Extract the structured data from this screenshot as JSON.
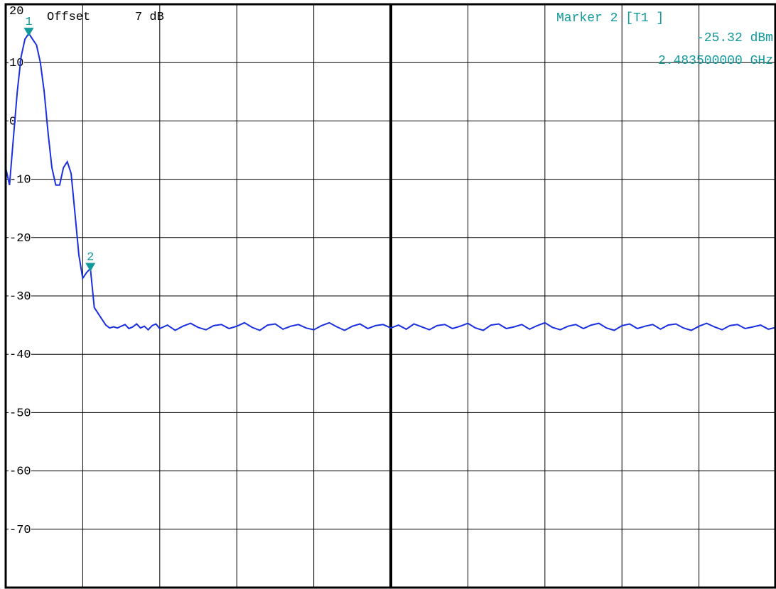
{
  "header": {
    "offset_label": "Offset",
    "offset_value": "7 dB"
  },
  "marker_readout": {
    "title": "Marker 2 [T1 ]",
    "level": "-25.32 dBm",
    "frequency": "2.483500000 GHz"
  },
  "colors": {
    "trace": "#1a2fe0",
    "marker": "#129a9a",
    "grid": "#000000",
    "background": "#ffffff"
  },
  "chart_data": {
    "type": "line",
    "title": "",
    "xlabel": "",
    "ylabel": "",
    "grid": true,
    "x_divisions": 10,
    "ylim": [
      -80,
      20
    ],
    "y_ticks": [
      {
        "value": 20,
        "label": "20"
      },
      {
        "value": 10,
        "label": "10"
      },
      {
        "value": 0,
        "label": "0"
      },
      {
        "value": -10,
        "label": "-10"
      },
      {
        "value": -20,
        "label": "-20"
      },
      {
        "value": -30,
        "label": "-30"
      },
      {
        "value": -40,
        "label": "-40"
      },
      {
        "value": -50,
        "label": "-50"
      },
      {
        "value": -60,
        "label": "-60"
      },
      {
        "value": -70,
        "label": "-70"
      }
    ],
    "series": [
      {
        "x": [
          0.0,
          0.05,
          0.1,
          0.15,
          0.2,
          0.25,
          0.3,
          0.35,
          0.4,
          0.45,
          0.5,
          0.55,
          0.6,
          0.65,
          0.7,
          0.75,
          0.8,
          0.85,
          0.9,
          0.95,
          1.0,
          1.05,
          1.1,
          1.15,
          1.2,
          1.25,
          1.3,
          1.35,
          1.4,
          1.45,
          1.5,
          1.55,
          1.6,
          1.65,
          1.7,
          1.75,
          1.8,
          1.85,
          1.9,
          1.95,
          2.0,
          2.1,
          2.2,
          2.3,
          2.4,
          2.5,
          2.6,
          2.7,
          2.8,
          2.9,
          3.0,
          3.1,
          3.2,
          3.3,
          3.4,
          3.5,
          3.6,
          3.7,
          3.8,
          3.9,
          4.0,
          4.1,
          4.2,
          4.3,
          4.4,
          4.5,
          4.6,
          4.7,
          4.8,
          4.9,
          5.0,
          5.1,
          5.2,
          5.3,
          5.4,
          5.5,
          5.6,
          5.7,
          5.8,
          5.9,
          6.0,
          6.1,
          6.2,
          6.3,
          6.4,
          6.5,
          6.6,
          6.7,
          6.8,
          6.9,
          7.0,
          7.1,
          7.2,
          7.3,
          7.4,
          7.5,
          7.6,
          7.7,
          7.8,
          7.9,
          8.0,
          8.1,
          8.2,
          8.3,
          8.4,
          8.5,
          8.6,
          8.7,
          8.8,
          8.9,
          9.0,
          9.1,
          9.2,
          9.3,
          9.4,
          9.5,
          9.6,
          9.7,
          9.8,
          9.9,
          10.0
        ],
        "y": [
          -8,
          -11,
          -3,
          5,
          11,
          14,
          15,
          14,
          13,
          10,
          5,
          -2,
          -8,
          -11,
          -11,
          -8,
          -7,
          -9,
          -16,
          -23,
          -27,
          -26,
          -25.3,
          -32,
          -33,
          -34,
          -35,
          -35.5,
          -35.3,
          -35.5,
          -35.2,
          -34.9,
          -35.6,
          -35.3,
          -34.8,
          -35.5,
          -35.2,
          -35.8,
          -35.1,
          -34.8,
          -35.6,
          -35.0,
          -35.9,
          -35.2,
          -34.7,
          -35.4,
          -35.8,
          -35.1,
          -34.9,
          -35.6,
          -35.2,
          -34.6,
          -35.4,
          -35.9,
          -35.0,
          -34.8,
          -35.7,
          -35.2,
          -34.9,
          -35.5,
          -35.8,
          -35.1,
          -34.6,
          -35.3,
          -35.9,
          -35.2,
          -34.8,
          -35.6,
          -35.1,
          -34.9,
          -35.5,
          -35.0,
          -35.7,
          -34.8,
          -35.3,
          -35.8,
          -35.1,
          -34.9,
          -35.6,
          -35.2,
          -34.7,
          -35.5,
          -35.9,
          -35.0,
          -34.8,
          -35.6,
          -35.3,
          -34.9,
          -35.7,
          -35.1,
          -34.6,
          -35.4,
          -35.8,
          -35.2,
          -34.9,
          -35.6,
          -35.0,
          -34.7,
          -35.5,
          -35.9,
          -35.1,
          -34.8,
          -35.6,
          -35.2,
          -34.9,
          -35.7,
          -35.0,
          -34.8,
          -35.5,
          -35.9,
          -35.2,
          -34.7,
          -35.3,
          -35.8,
          -35.1,
          -34.9,
          -35.6,
          -35.3,
          -35.0,
          -35.7,
          -35.4
        ]
      }
    ],
    "markers": [
      {
        "label": "1",
        "x": 0.3,
        "y": 15
      },
      {
        "label": "2",
        "x": 1.1,
        "y": -25.32
      }
    ]
  }
}
